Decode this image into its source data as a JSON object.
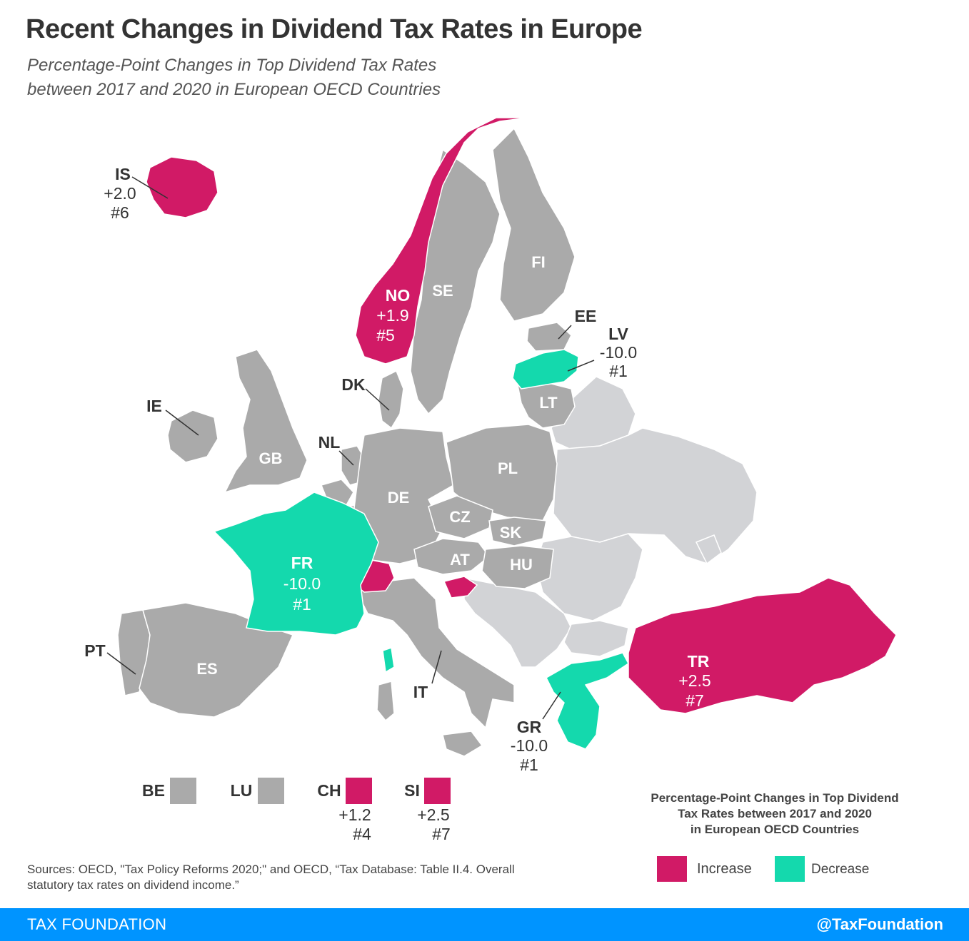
{
  "title": "Recent Changes in Dividend Tax Rates in Europe",
  "subtitle_lines": [
    "Percentage-Point Changes in Top Dividend Tax Rates",
    "between 2017 and 2020 in European OECD Countries"
  ],
  "colors": {
    "increase": "#d11a66",
    "decrease": "#14d9ad",
    "no_change_oecd": "#aaaaaa",
    "non_oecd": "#d2d3d6",
    "footer_bar": "#0094ff"
  },
  "countries": [
    {
      "code": "IS",
      "change": "+2.0",
      "rank": "#6",
      "category": "increase"
    },
    {
      "code": "NO",
      "change": "+1.9",
      "rank": "#5",
      "category": "increase"
    },
    {
      "code": "SE",
      "category": "no_change"
    },
    {
      "code": "FI",
      "category": "no_change"
    },
    {
      "code": "EE",
      "category": "no_change"
    },
    {
      "code": "LV",
      "change": "-10.0",
      "rank": "#1",
      "category": "decrease"
    },
    {
      "code": "LT",
      "category": "no_change"
    },
    {
      "code": "DK",
      "category": "no_change"
    },
    {
      "code": "IE",
      "category": "no_change"
    },
    {
      "code": "GB",
      "category": "no_change"
    },
    {
      "code": "NL",
      "category": "no_change"
    },
    {
      "code": "DE",
      "category": "no_change"
    },
    {
      "code": "PL",
      "category": "no_change"
    },
    {
      "code": "CZ",
      "category": "no_change"
    },
    {
      "code": "SK",
      "category": "no_change"
    },
    {
      "code": "AT",
      "category": "no_change"
    },
    {
      "code": "HU",
      "category": "no_change"
    },
    {
      "code": "FR",
      "change": "-10.0",
      "rank": "#1",
      "category": "decrease"
    },
    {
      "code": "PT",
      "category": "no_change"
    },
    {
      "code": "ES",
      "category": "no_change"
    },
    {
      "code": "IT",
      "category": "no_change"
    },
    {
      "code": "GR",
      "change": "-10.0",
      "rank": "#1",
      "category": "decrease"
    },
    {
      "code": "TR",
      "change": "+2.5",
      "rank": "#7",
      "category": "increase"
    }
  ],
  "small_countries": [
    {
      "code": "BE",
      "category": "no_change"
    },
    {
      "code": "LU",
      "category": "no_change"
    },
    {
      "code": "CH",
      "change": "+1.2",
      "rank": "#4",
      "category": "increase"
    },
    {
      "code": "SI",
      "change": "+2.5",
      "rank": "#7",
      "category": "increase"
    }
  ],
  "legend": {
    "title_lines": [
      "Percentage-Point Changes in Top Dividend",
      "Tax Rates between 2017 and 2020",
      "in European OECD Countries"
    ],
    "items": [
      {
        "label": "Increase",
        "category": "increase"
      },
      {
        "label": "Decrease",
        "category": "decrease"
      }
    ]
  },
  "sources_lines": [
    "Sources: OECD, \"Tax Policy Reforms 2020;\" and OECD, “Tax Database: Table II.4. Overall",
    "statutory tax rates on dividend income.”"
  ],
  "footer": {
    "left": "TAX FOUNDATION",
    "right": "@TaxFoundation"
  }
}
